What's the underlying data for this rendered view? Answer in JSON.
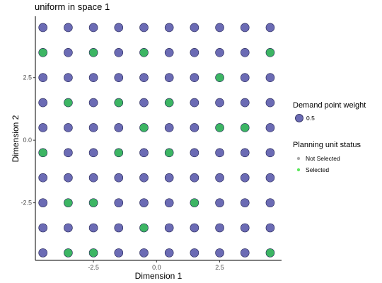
{
  "chart_data": {
    "type": "scatter",
    "title": "uniform in space 1",
    "xlabel": "Dimension 1",
    "ylabel": "Dimension 2",
    "xlim": [
      -4.8,
      4.95
    ],
    "ylim": [
      -4.8,
      4.95
    ],
    "x_ticks": [
      -2.5,
      0.0,
      2.5
    ],
    "x_tick_labels": [
      "-2.5",
      "0.0",
      "2.5"
    ],
    "y_ticks": [
      -2.5,
      0.0,
      2.5
    ],
    "y_tick_labels": [
      "-2.5",
      "0.0",
      "2.5"
    ],
    "grid": false,
    "legend_position": "right",
    "colors": {
      "demand_point": "#6b6bb4",
      "demand_point_stroke": "#1e1e50",
      "selected": "#3cb563",
      "not_selected_legend": "#aaaaaa",
      "selected_legend": "#5fe85f"
    },
    "grid_coords": [
      -4.5,
      -3.5,
      -2.5,
      -1.5,
      -0.5,
      0.5,
      1.5,
      2.5,
      3.5,
      4.5
    ],
    "demand_point_weight": 0.5,
    "selected_points": [
      [
        -3.5,
        -4.5
      ],
      [
        -3.5,
        -2.5
      ],
      [
        -3.5,
        1.5
      ],
      [
        -4.5,
        3.5
      ],
      [
        -4.5,
        -0.5
      ],
      [
        -2.5,
        3.5
      ],
      [
        -2.5,
        -2.5
      ],
      [
        -2.5,
        3.5
      ],
      [
        -1.5,
        1.5
      ],
      [
        -1.5,
        -0.5
      ],
      [
        -0.5,
        3.5
      ],
      [
        -0.5,
        0.5
      ],
      [
        -0.5,
        -3.5
      ],
      [
        0.5,
        1.5
      ],
      [
        0.5,
        -0.5
      ],
      [
        1.5,
        -2.5
      ],
      [
        2.5,
        2.5
      ],
      [
        2.5,
        0.5
      ],
      [
        3.5,
        0.5
      ],
      [
        4.5,
        3.5
      ],
      [
        4.5,
        -4.5
      ],
      [
        -2.5,
        -4.5
      ]
    ],
    "legend": {
      "weight_title": "Demand point weight",
      "weight_label": "0.5",
      "status_title": "Planning unit status",
      "status_items": [
        "Not Selected",
        "Selected"
      ]
    }
  }
}
